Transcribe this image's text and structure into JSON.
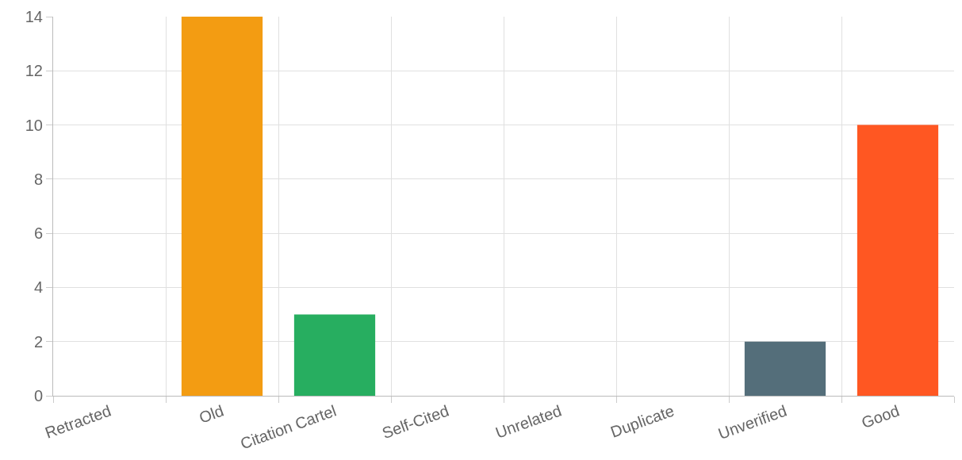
{
  "chart_data": {
    "type": "bar",
    "categories": [
      "Retracted",
      "Old",
      "Citation Cartel",
      "Self-Cited",
      "Unrelated",
      "Duplicate",
      "Unverified",
      "Good"
    ],
    "values": [
      0,
      14,
      3,
      0,
      0,
      0,
      2,
      10
    ],
    "colors": [
      null,
      "#f39c12",
      "#27ae60",
      null,
      null,
      null,
      "#546e7a",
      "#ff5722"
    ],
    "ylim": [
      0,
      14
    ],
    "yticks": [
      0,
      2,
      4,
      6,
      8,
      10,
      12,
      14
    ],
    "grid": true
  }
}
